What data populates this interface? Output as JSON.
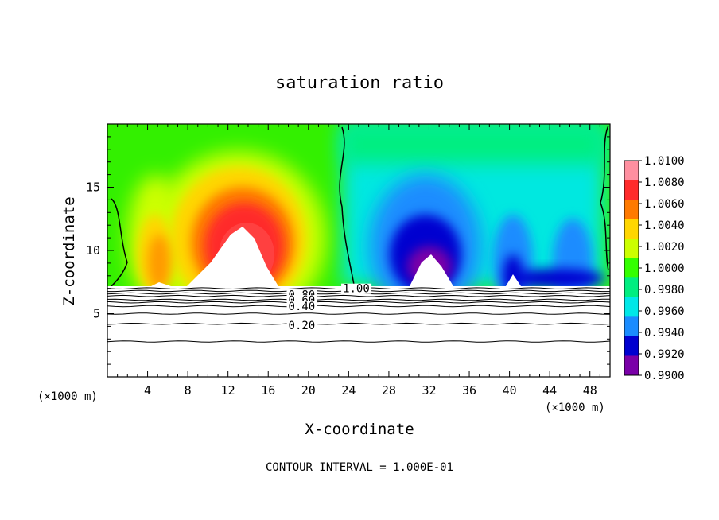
{
  "chart_data": {
    "type": "heatmap",
    "title": "saturation ratio",
    "xlabel": "X-coordinate",
    "ylabel": "Z-coordinate",
    "x_unit": "(×1000 m)",
    "y_unit": "(×1000 m)",
    "xlim": [
      0,
      50
    ],
    "ylim": [
      0,
      20
    ],
    "x_ticks": [
      "4",
      "8",
      "12",
      "16",
      "20",
      "24",
      "28",
      "32",
      "36",
      "40",
      "44",
      "48"
    ],
    "y_ticks": [
      "5",
      "10",
      "15"
    ],
    "colorbar": {
      "min": 0.99,
      "max": 1.01,
      "labels": [
        "1.0100",
        "1.0080",
        "1.0060",
        "1.0040",
        "1.0020",
        "1.0000",
        "0.9980",
        "0.9960",
        "0.9940",
        "0.9920",
        "0.9900"
      ],
      "colors": [
        "#ff8fa0",
        "#ff2b2b",
        "#ff7a00",
        "#ffd600",
        "#ccff00",
        "#33ff00",
        "#00ee80",
        "#00e8e8",
        "#1a8cff",
        "#0000d0",
        "#7a00a8"
      ]
    },
    "contour_labels": [
      {
        "text": "1.00",
        "x": 22.0,
        "z": 7.0
      },
      {
        "text": "0.80",
        "x": 18.0,
        "z": 6.5
      },
      {
        "text": "0.60",
        "x": 18.0,
        "z": 6.1
      },
      {
        "text": "0.40",
        "x": 18.0,
        "z": 5.6
      },
      {
        "text": "0.20",
        "x": 18.0,
        "z": 4.1
      }
    ],
    "cloud_top_z": 7.0,
    "contour_lines_z": [
      7.0,
      6.8,
      6.6,
      6.4,
      6.1,
      5.9,
      5.6,
      5.0,
      4.2,
      2.8
    ],
    "footer": "CONTOUR INTERVAL = 1.000E-01"
  }
}
